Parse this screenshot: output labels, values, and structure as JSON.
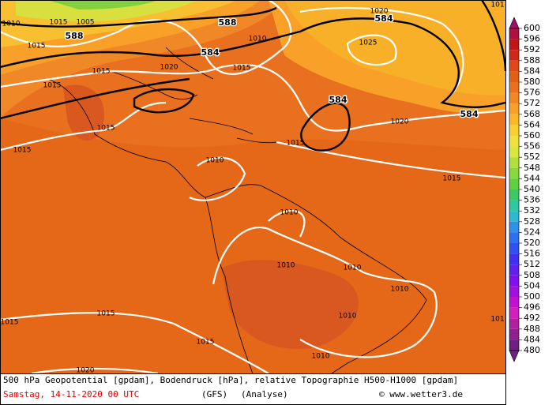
{
  "map": {
    "isobar_labels": [
      "1010",
      "1015",
      "1005",
      "1015",
      "1015",
      "1015",
      "1020",
      "1015",
      "1010",
      "1020",
      "1025",
      "1020",
      "1015",
      "1015",
      "1015",
      "1010",
      "1015",
      "1010",
      "1010",
      "1010",
      "1010",
      "1010",
      "1015",
      "1015",
      "1015",
      "1010",
      "1020",
      "101",
      "101"
    ],
    "height_labels": [
      "588",
      "588",
      "584",
      "584",
      "584",
      "584"
    ]
  },
  "colorbar": {
    "levels": [
      600,
      596,
      592,
      588,
      584,
      580,
      576,
      572,
      568,
      564,
      560,
      556,
      552,
      548,
      544,
      540,
      536,
      532,
      528,
      524,
      520,
      516,
      512,
      508,
      504,
      500,
      496,
      492,
      488,
      484,
      480
    ],
    "colors": [
      "#a0106a",
      "#b01040",
      "#c01818",
      "#d02818",
      "#e04818",
      "#e06018",
      "#e87020",
      "#f08828",
      "#f8a028",
      "#f8b828",
      "#f8d030",
      "#f0e040",
      "#d8e840",
      "#b0e040",
      "#88d840",
      "#60d040",
      "#40c860",
      "#30c8a0",
      "#30b8d0",
      "#3090e8",
      "#3070f0",
      "#3050f0",
      "#4030f0",
      "#6020f0",
      "#8010f0",
      "#a010e0",
      "#c010d0",
      "#d020c0",
      "#b020a0",
      "#902090",
      "#702080"
    ]
  },
  "caption": {
    "line1": "500 hPa Geopotential [gpdam], Bodendruck [hPa], relative Topographie H500-H1000 [gpdam]",
    "date": "Samstag, 14-11-2020  00 UTC",
    "model": "(GFS)",
    "run": "(Analyse)",
    "copyright": "© www.wetter3.de"
  }
}
